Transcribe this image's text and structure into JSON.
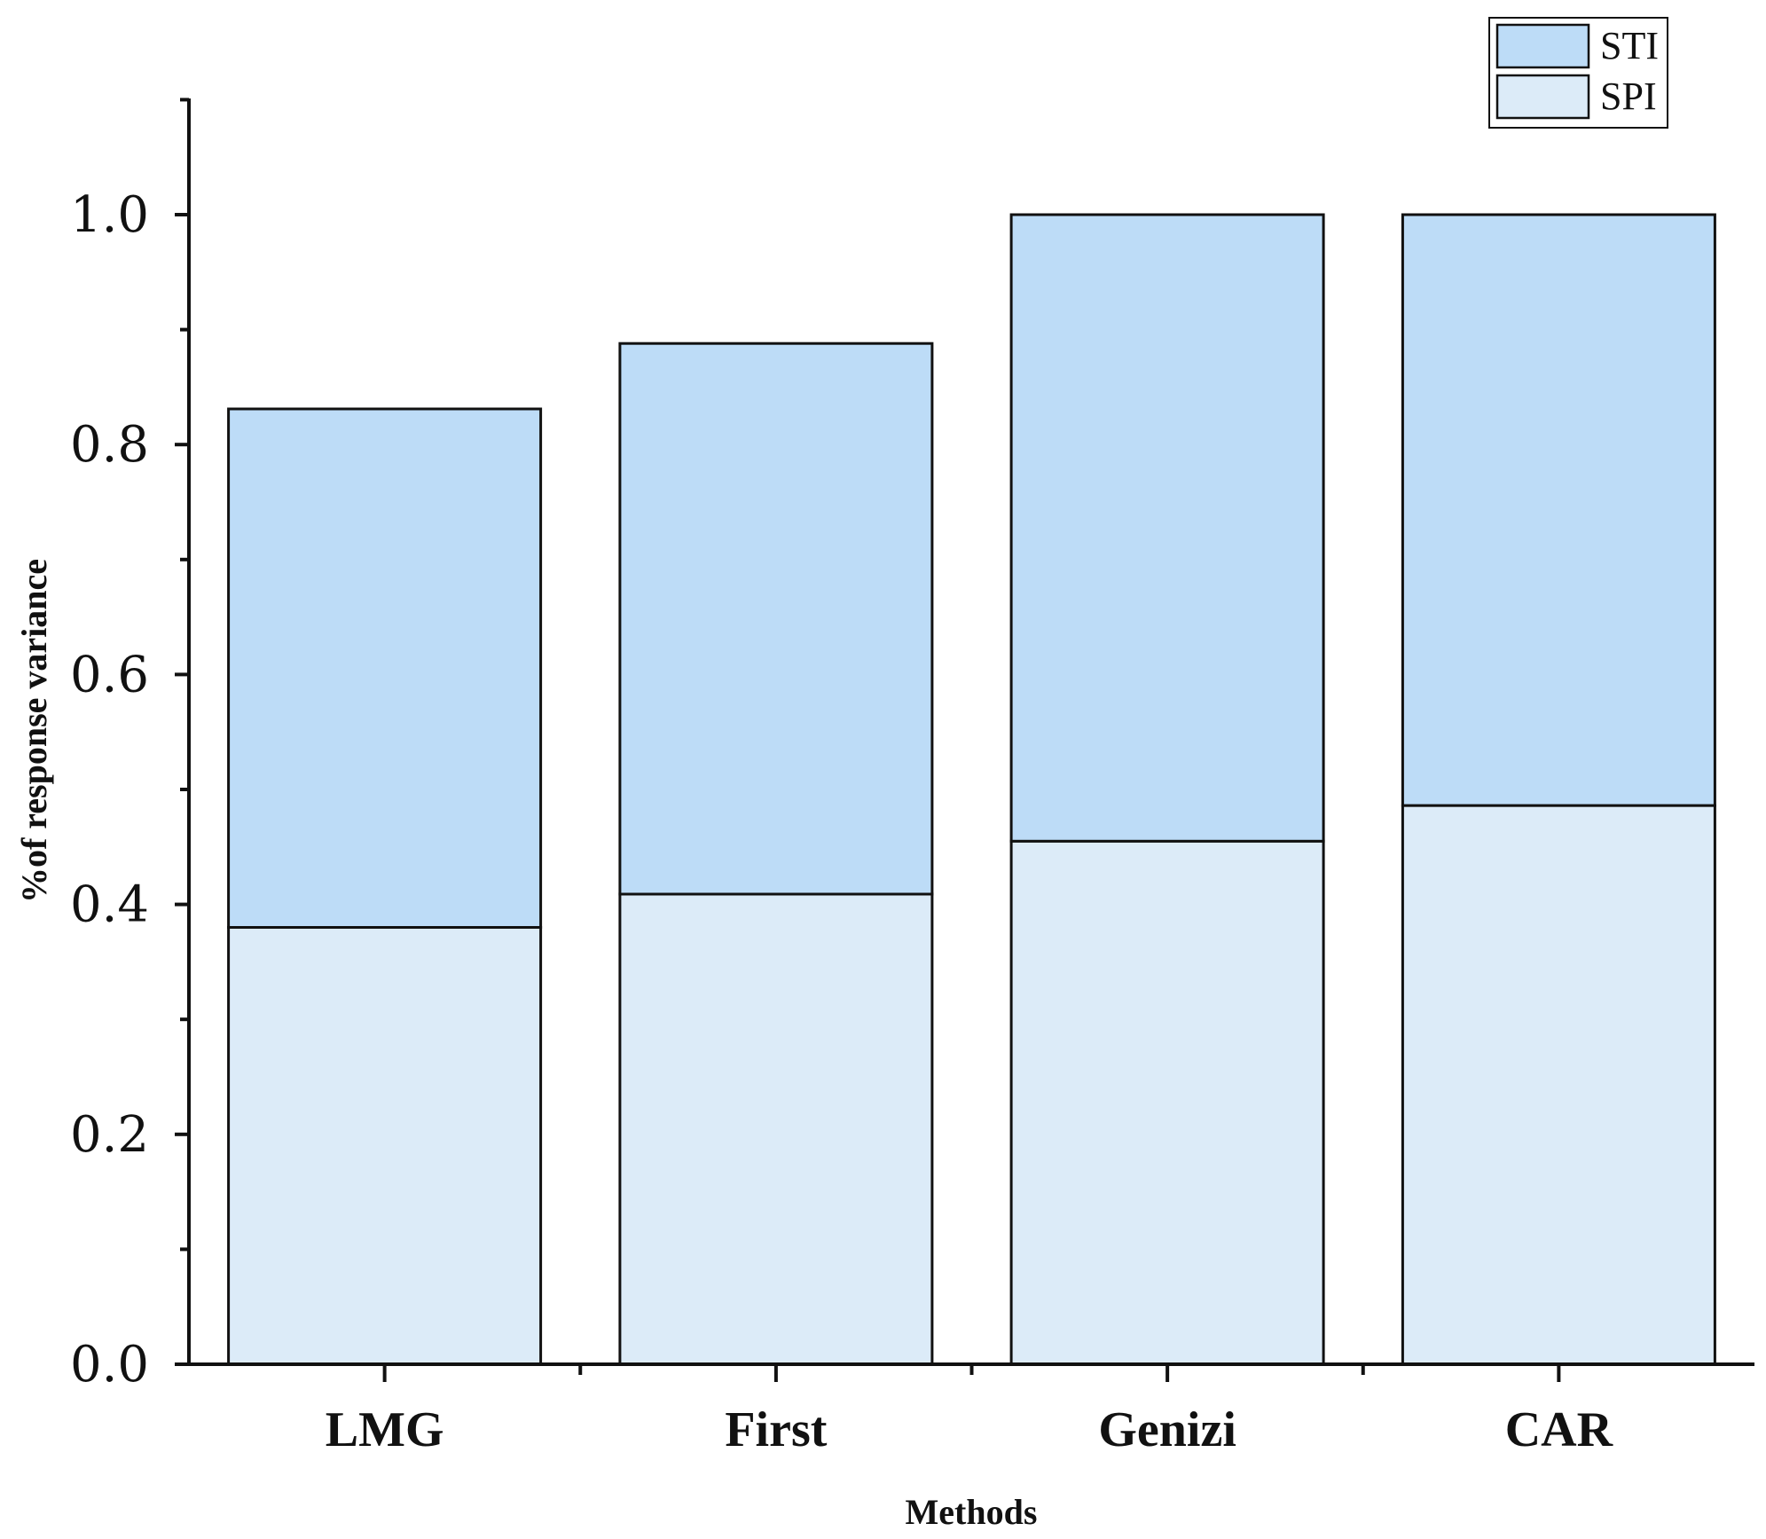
{
  "chart_data": {
    "type": "bar",
    "stacked": true,
    "categories": [
      "LMG",
      "First",
      "Genizi",
      "CAR"
    ],
    "series": [
      {
        "name": "SPI",
        "values": [
          0.38,
          0.409,
          0.455,
          0.486
        ],
        "color": "#dcebf8"
      },
      {
        "name": "STI",
        "values": [
          0.451,
          0.479,
          0.545,
          0.514
        ],
        "color": "#bddcf7"
      }
    ],
    "xlabel": "Methods",
    "ylabel": "%of response variance",
    "ylim": [
      0,
      1.1
    ],
    "yticks": [
      "0.0",
      "0.2",
      "0.4",
      "0.6",
      "0.8",
      "1.0"
    ],
    "ytick_values": [
      0,
      0.2,
      0.4,
      0.6,
      0.8,
      1.0
    ],
    "grid": false,
    "legend": {
      "placement": "top-right",
      "order": [
        "STI",
        "SPI"
      ]
    }
  }
}
